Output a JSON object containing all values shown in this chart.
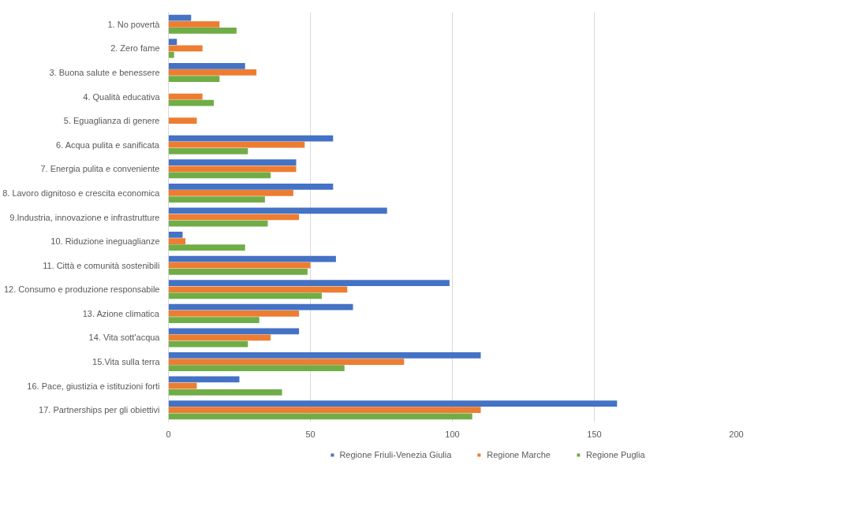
{
  "chart_data": {
    "type": "bar",
    "orientation": "horizontal",
    "categories": [
      "1. No povertà",
      "2. Zero fame",
      "3. Buona salute e benessere",
      "4. Qualità educativa",
      "5. Eguaglianza di genere",
      "6. Acqua pulita e sanificata",
      "7. Energia pulita e conveniente",
      "8. Lavoro dignitoso e crescita economica",
      "9.Industria, innovazione e infrastrutture",
      "10. Riduzione ineguaglianze",
      "11. Città e comunità sostenibili",
      "12. Consumo e produzione responsabile",
      "13. Azione climatica",
      "14. Vita sott'acqua",
      "15.Vita sulla terra",
      "16. Pace, giustizia e istituzioni forti",
      "17. Partnerships per gli obiettivi"
    ],
    "series": [
      {
        "name": "Regione Friuli-Venezia Giulia",
        "color": "#4472c4",
        "values": [
          8,
          3,
          27,
          0,
          0,
          58,
          45,
          58,
          77,
          5,
          59,
          99,
          65,
          46,
          110,
          25,
          158
        ]
      },
      {
        "name": "Regione Marche",
        "color": "#ed7d31",
        "values": [
          18,
          12,
          31,
          12,
          10,
          48,
          45,
          44,
          46,
          6,
          50,
          63,
          46,
          36,
          83,
          10,
          110
        ]
      },
      {
        "name": "Regione Puglia",
        "color": "#70ad47",
        "values": [
          24,
          2,
          18,
          16,
          0,
          28,
          36,
          34,
          35,
          27,
          49,
          54,
          32,
          28,
          62,
          40,
          107
        ]
      }
    ],
    "xlim": [
      0,
      200
    ],
    "xticks": [
      0,
      50,
      100,
      150,
      200
    ],
    "grid": "x",
    "legend": "bottom"
  }
}
